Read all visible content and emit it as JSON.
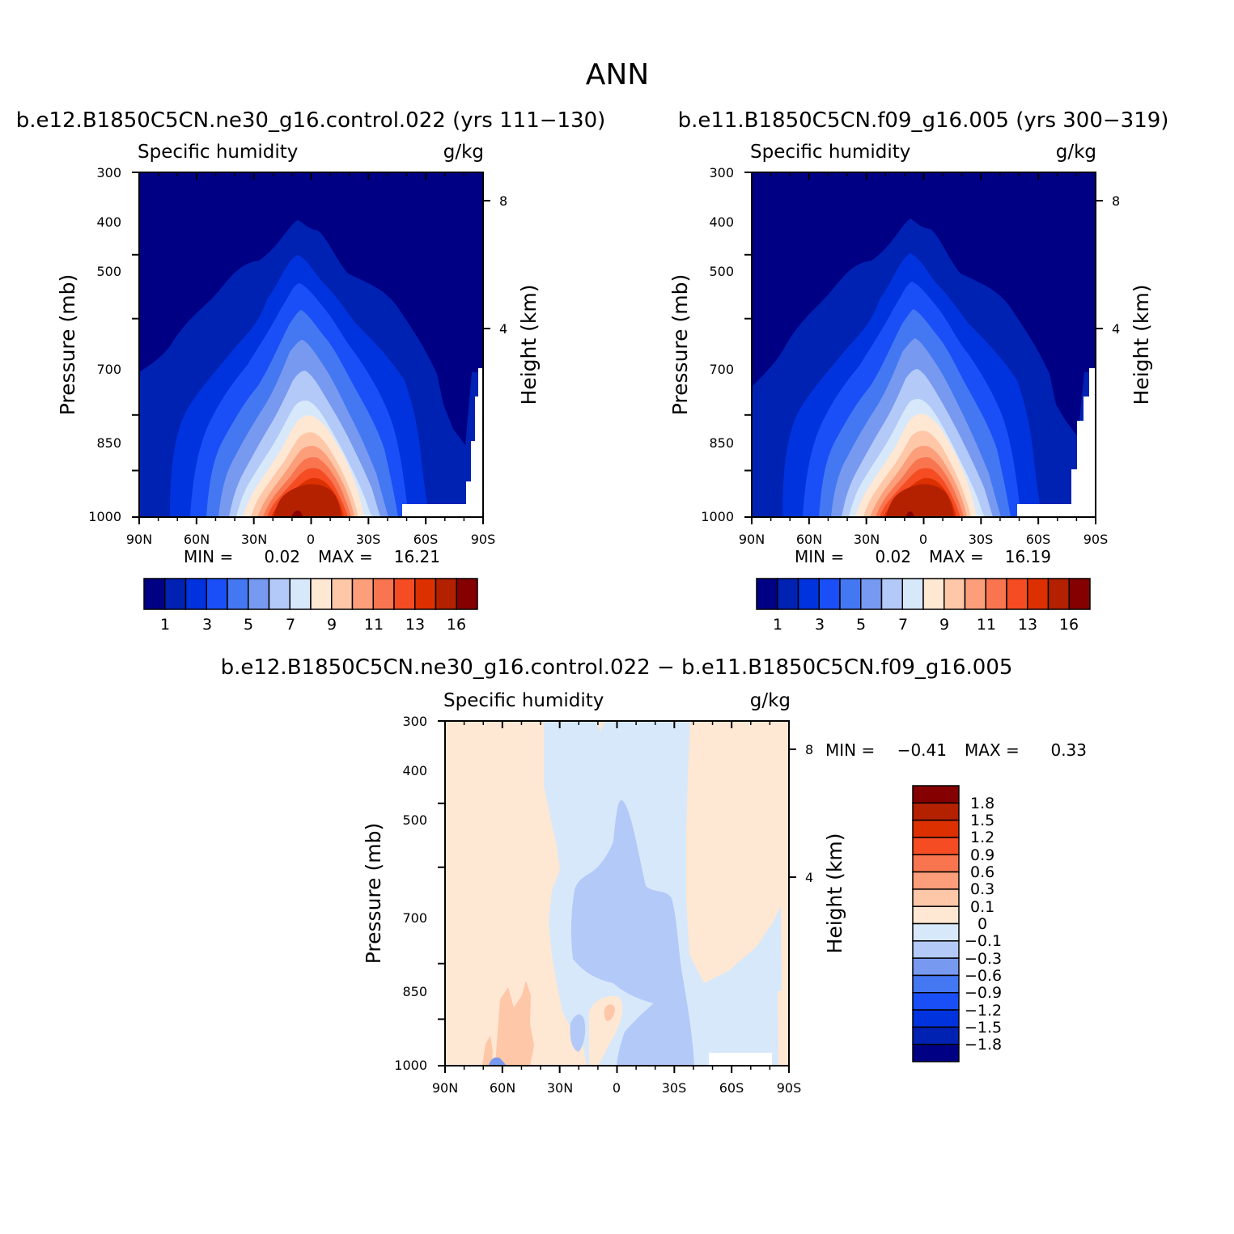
{
  "figure": {
    "title": "ANN"
  },
  "chart_data": [
    {
      "type": "heatmap",
      "panel": "model-1",
      "title": "b.e12.B1850C5CN.ne30_g16.control.022 (yrs 111−130)",
      "variable": "Specific humidity",
      "units": "g/kg",
      "xlabel": "",
      "ylabel": "Pressure (mb)",
      "y2label": "Height (km)",
      "x_ticks": [
        "90N",
        "60N",
        "30N",
        "0",
        "30S",
        "60S",
        "90S"
      ],
      "x_range": [
        90,
        -90
      ],
      "y_ticks": [
        "300",
        "400",
        "500",
        "700",
        "850",
        "1000"
      ],
      "y_range": [
        300,
        1000
      ],
      "y_scale": "log",
      "y2_ticks": [
        "8",
        "4"
      ],
      "min_label": "MIN =",
      "min_value": "0.02",
      "max_label": "MAX =",
      "max_value": "16.21",
      "colorbar_labels": [
        "1",
        "3",
        "5",
        "7",
        "9",
        "11",
        "13",
        "16"
      ],
      "colorbar_colors": [
        "#000085",
        "#0022b3",
        "#0033dd",
        "#1a4ff8",
        "#4477f2",
        "#7799f0",
        "#b3c9f8",
        "#d7e8fb",
        "#fee7d3",
        "#fdc7a8",
        "#fc9e7a",
        "#f8754f",
        "#f54c23",
        "#dd3000",
        "#b32100",
        "#850000"
      ],
      "note": "values peak near 1000 mb at the equator and decrease poleward and upward"
    },
    {
      "type": "heatmap",
      "panel": "model-2",
      "title": "b.e11.B1850C5CN.f09_g16.005 (yrs 300−319)",
      "variable": "Specific humidity",
      "units": "g/kg",
      "xlabel": "",
      "ylabel": "Pressure (mb)",
      "y2label": "Height (km)",
      "x_ticks": [
        "90N",
        "60N",
        "30N",
        "0",
        "30S",
        "60S",
        "90S"
      ],
      "x_range": [
        90,
        -90
      ],
      "y_ticks": [
        "300",
        "400",
        "500",
        "700",
        "850",
        "1000"
      ],
      "y_range": [
        300,
        1000
      ],
      "y_scale": "log",
      "y2_ticks": [
        "8",
        "4"
      ],
      "min_label": "MIN =",
      "min_value": "0.02",
      "max_label": "MAX =",
      "max_value": "16.19",
      "colorbar_labels": [
        "1",
        "3",
        "5",
        "7",
        "9",
        "11",
        "13",
        "16"
      ],
      "colorbar_colors": [
        "#000085",
        "#0022b3",
        "#0033dd",
        "#1a4ff8",
        "#4477f2",
        "#7799f0",
        "#b3c9f8",
        "#d7e8fb",
        "#fee7d3",
        "#fdc7a8",
        "#fc9e7a",
        "#f8754f",
        "#f54c23",
        "#dd3000",
        "#b32100",
        "#850000"
      ]
    },
    {
      "type": "heatmap",
      "panel": "difference",
      "title": "b.e12.B1850C5CN.ne30_g16.control.022 − b.e11.B1850C5CN.f09_g16.005",
      "variable": "Specific humidity",
      "units": "g/kg",
      "xlabel": "",
      "ylabel": "Pressure (mb)",
      "y2label": "Height (km)",
      "x_ticks": [
        "90N",
        "60N",
        "30N",
        "0",
        "30S",
        "60S",
        "90S"
      ],
      "x_range": [
        90,
        -90
      ],
      "y_ticks": [
        "300",
        "400",
        "500",
        "700",
        "850",
        "1000"
      ],
      "y_range": [
        300,
        1000
      ],
      "y_scale": "log",
      "y2_ticks": [
        "8",
        "4"
      ],
      "min_label": "MIN =",
      "min_value": "−0.41",
      "max_label": "MAX =",
      "max_value": "0.33",
      "colorbar_labels": [
        "1.8",
        "1.5",
        "1.2",
        "0.9",
        "0.6",
        "0.3",
        "0.1",
        "0",
        "−0.1",
        "−0.3",
        "−0.6",
        "−0.9",
        "−1.2",
        "−1.5",
        "−1.8"
      ],
      "colorbar_colors": [
        "#850000",
        "#b32100",
        "#dd3000",
        "#f54c23",
        "#f8754f",
        "#fc9e7a",
        "#fdc7a8",
        "#fee7d3",
        "#d7e8fb",
        "#b3c9f8",
        "#7799f0",
        "#4477f2",
        "#1a4ff8",
        "#0033dd",
        "#0022b3",
        "#000085"
      ]
    }
  ]
}
